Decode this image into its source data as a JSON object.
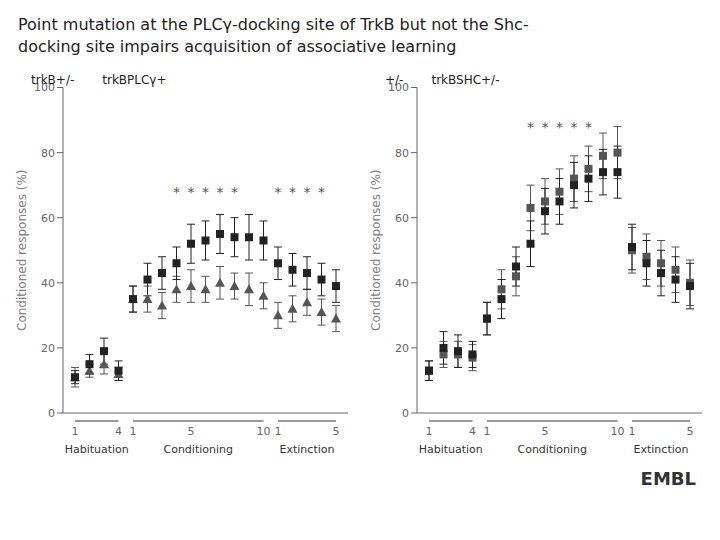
{
  "title": [
    "Point mutation at the PLCγ-docking site of TrkB but not the Shc-",
    "docking site impairs acquisition of associative learning"
  ],
  "annotations": [
    "EMBL"
  ],
  "chart_data": [
    {
      "type": "scatter",
      "ylabel": "Conditioned responses (%)",
      "ylim": [
        0,
        100
      ],
      "yticks": [
        0,
        20,
        40,
        60,
        80,
        100
      ],
      "grid": false,
      "legend": "upper left",
      "sections": [
        {
          "label": "Habituation",
          "categories": [
            "1",
            null,
            null,
            "4"
          ]
        },
        {
          "label": "Conditioning",
          "categories": [
            "1",
            null,
            null,
            null,
            "5",
            null,
            null,
            null,
            null,
            "10"
          ]
        },
        {
          "label": "Extinction",
          "categories": [
            "1",
            null,
            null,
            null,
            "5"
          ]
        }
      ],
      "series": [
        {
          "name": "trkB+/-",
          "color": "#555555",
          "marker": "triangle",
          "values": [
            11,
            13,
            15,
            12,
            35,
            35,
            33,
            38,
            39,
            38,
            40,
            39,
            38,
            36,
            30,
            32,
            34,
            31,
            29
          ],
          "errors": [
            3,
            2,
            3,
            2,
            4,
            4,
            4,
            4,
            5,
            4,
            5,
            4,
            5,
            4,
            4,
            4,
            4,
            4,
            4
          ]
        },
        {
          "name": "trkBPLCγ+",
          "color": "#222222",
          "marker": "square",
          "values": [
            11,
            15,
            19,
            13,
            35,
            41,
            43,
            46,
            52,
            53,
            55,
            54,
            54,
            53,
            46,
            44,
            43,
            41,
            39
          ],
          "errors": [
            2,
            3,
            4,
            3,
            4,
            5,
            5,
            5,
            6,
            6,
            6,
            6,
            7,
            6,
            5,
            5,
            5,
            5,
            5
          ]
        }
      ],
      "annotations": [
        {
          "text": "*",
          "values": [
            null,
            null,
            null,
            null,
            null,
            null,
            null,
            68,
            68,
            68,
            68,
            68,
            null,
            null,
            68,
            68,
            68,
            68,
            null
          ]
        }
      ]
    },
    {
      "type": "scatter",
      "ylabel": "Conditioned responses (%)",
      "ylim": [
        0,
        100
      ],
      "yticks": [
        0,
        20,
        40,
        60,
        80,
        100
      ],
      "grid": false,
      "legend": "upper left",
      "sections": [
        {
          "label": "Habituation",
          "categories": [
            "1",
            null,
            null,
            "4"
          ]
        },
        {
          "label": "Conditioning",
          "categories": [
            "1",
            null,
            null,
            null,
            "5",
            null,
            null,
            null,
            null,
            "10"
          ]
        },
        {
          "label": "Extinction",
          "categories": [
            "1",
            null,
            null,
            null,
            "5"
          ]
        }
      ],
      "series": [
        {
          "name": "+/-",
          "color": "#555555",
          "marker": "square",
          "values": [
            13,
            18,
            18,
            17,
            29,
            38,
            42,
            63,
            65,
            68,
            72,
            75,
            79,
            80,
            50,
            48,
            46,
            44,
            40
          ],
          "errors": [
            3,
            4,
            4,
            4,
            5,
            6,
            6,
            7,
            7,
            7,
            7,
            7,
            7,
            8,
            7,
            7,
            7,
            7,
            7
          ]
        },
        {
          "name": "trkBSHC+/-",
          "color": "#222222",
          "marker": "square",
          "values": [
            13,
            20,
            19,
            18,
            29,
            35,
            45,
            52,
            62,
            65,
            70,
            72,
            74,
            74,
            51,
            46,
            43,
            41,
            39
          ],
          "errors": [
            3,
            5,
            5,
            4,
            5,
            6,
            6,
            7,
            7,
            7,
            7,
            7,
            7,
            8,
            7,
            7,
            7,
            7,
            7
          ]
        }
      ],
      "annotations": [
        {
          "text": "*",
          "values": [
            null,
            null,
            null,
            null,
            null,
            null,
            null,
            88,
            88,
            88,
            88,
            88,
            null,
            null,
            null,
            null,
            null,
            null,
            null
          ]
        }
      ]
    }
  ]
}
